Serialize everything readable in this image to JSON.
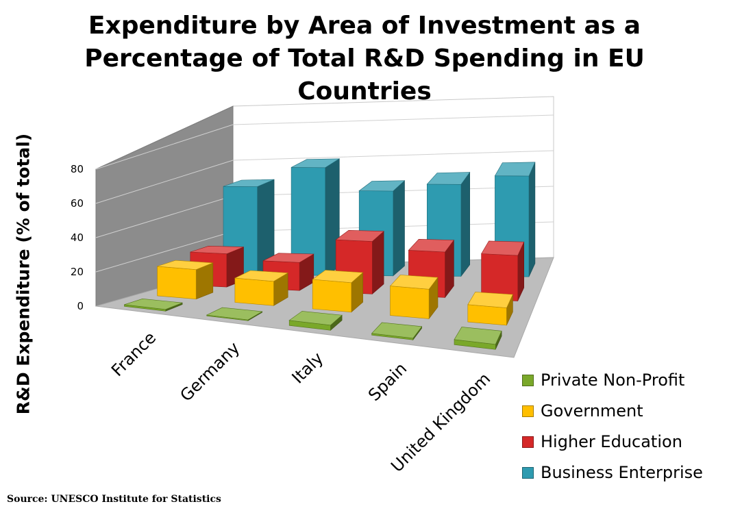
{
  "chart_data": {
    "type": "bar",
    "title_lines": [
      "Expenditure by Area of Investment as a",
      "Percentage of Total R&D Spending in EU",
      "Countries"
    ],
    "ylabel": "R&D Expenditure (% of total)",
    "xlabel": "",
    "ylim": [
      0,
      80
    ],
    "yticks": [
      0,
      20,
      40,
      60,
      80
    ],
    "categories": [
      "France",
      "Germany",
      "Italy",
      "Spain",
      "United Kingdom"
    ],
    "series": [
      {
        "name": "Private Non-Profit",
        "color": "#7aa82a",
        "values": [
          1,
          0.5,
          3,
          1,
          3
        ]
      },
      {
        "name": "Government",
        "color": "#ffbf00",
        "values": [
          17,
          14,
          17,
          17,
          10
        ]
      },
      {
        "name": "Higher Education",
        "color": "#d52828",
        "values": [
          19,
          16,
          30,
          26,
          26
        ]
      },
      {
        "name": "Business Enterprise",
        "color": "#2e9bb0",
        "values": [
          50,
          61,
          48,
          52,
          57
        ]
      }
    ],
    "legend_order": [
      0,
      1,
      2,
      3
    ],
    "legend_position": "bottom-right",
    "grid": true,
    "style": "3d-column"
  },
  "source": "Source: UNESCO Institute for Statistics"
}
